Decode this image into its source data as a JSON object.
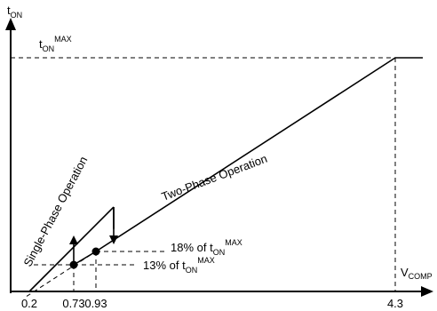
{
  "chart_data": {
    "type": "line",
    "title": "",
    "ylabel_main": "t",
    "ylabel_sub": "ON",
    "xlabel_main": "V",
    "xlabel_sub": "COMP",
    "tmax_label": {
      "main": "t",
      "sub": "ON",
      "sup": "MAX"
    },
    "x_ticks": [
      {
        "value": 0.2,
        "label": "0.2"
      },
      {
        "value": 0.73,
        "label": "0.73"
      },
      {
        "value": 0.93,
        "label": "0.93"
      },
      {
        "value": 4.3,
        "label": "4.3"
      }
    ],
    "series": [
      {
        "name": "Single-Phase Operation",
        "points": [
          [
            0.2,
            0.0
          ],
          [
            1.13,
            0.36
          ]
        ]
      },
      {
        "name": "Two-Phase Operation",
        "points": [
          [
            0.93,
            0.18
          ],
          [
            4.3,
            1.0
          ],
          [
            4.6,
            1.0
          ]
        ]
      }
    ],
    "tmax_level": 1.0,
    "transitions": [
      {
        "direction": "up",
        "x": 0.73,
        "from": 0.13,
        "to": 0.24
      },
      {
        "direction": "down",
        "x": 1.13,
        "from": 0.36,
        "to": 0.24
      }
    ],
    "annotations": [
      {
        "pct": "18% of t",
        "sub": "ON",
        "sup": "MAX",
        "x": 0.93,
        "y": 0.18
      },
      {
        "pct": "13% of t",
        "sub": "ON",
        "sup": "MAX",
        "x": 0.73,
        "y": 0.13
      }
    ]
  }
}
